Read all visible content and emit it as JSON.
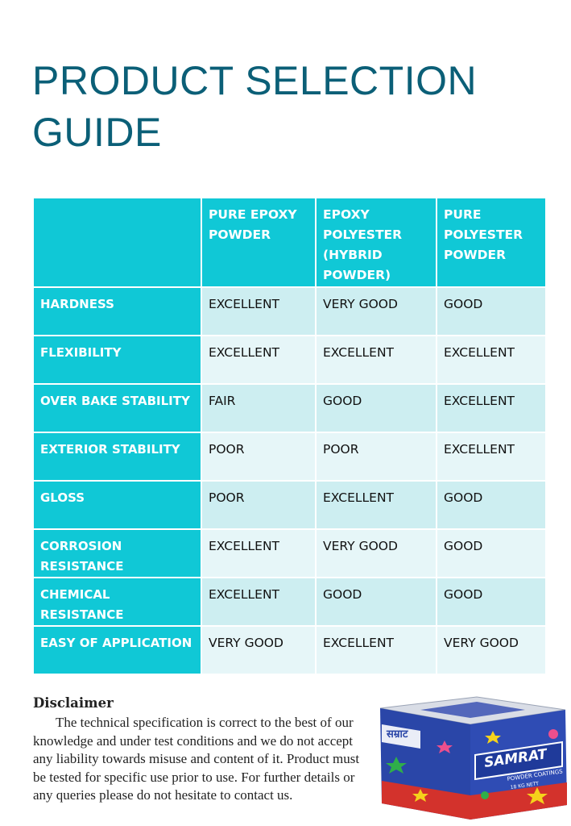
{
  "page": {
    "title_line1": "PRODUCT SELECTION",
    "title_line2": "GUIDE"
  },
  "table": {
    "columns": [
      "",
      "PURE EPOXY POWDER",
      "EPOXY POLYESTER (HYBRID POWDER)",
      "PURE POLYESTER POWDER"
    ],
    "rows": [
      {
        "label": "HARDNESS",
        "values": [
          "EXCELLENT",
          "VERY GOOD",
          "GOOD"
        ]
      },
      {
        "label": "FLEXIBILITY",
        "values": [
          "EXCELLENT",
          "EXCELLENT",
          "EXCELLENT"
        ]
      },
      {
        "label": "OVER BAKE STABILITY",
        "values": [
          "FAIR",
          "GOOD",
          "EXCELLENT"
        ]
      },
      {
        "label": "EXTERIOR STABILITY",
        "values": [
          "POOR",
          "POOR",
          "EXCELLENT"
        ]
      },
      {
        "label": "GLOSS",
        "values": [
          "POOR",
          "EXCELLENT",
          "GOOD"
        ]
      },
      {
        "label": "CORROSION RESISTANCE",
        "values": [
          "EXCELLENT",
          "VERY GOOD",
          "GOOD"
        ]
      },
      {
        "label": "CHEMICAL RESISTANCE",
        "values": [
          "EXCELLENT",
          "GOOD",
          "GOOD"
        ]
      },
      {
        "label": "EASY OF APPLICATION",
        "values": [
          "VERY GOOD",
          "EXCELLENT",
          "VERY GOOD"
        ]
      }
    ]
  },
  "disclaimer": {
    "heading": "Disclaimer",
    "text": "The technical specification is correct to the best of our knowledge and under test conditions and we do not accept any liability towards misuse and content of it. Product must be tested for specific use prior to use. For further details or any queries please do not hesitate to contact us."
  },
  "product_image": {
    "brand": "SAMRAT",
    "hindi_brand": "सम्राट",
    "subtitle": "POWDER COATINGS",
    "weight": "18 KG NETT",
    "colors": {
      "box_blue": "#2a46a8",
      "brand_red": "#d3322c",
      "accent_yellow": "#f5d21b",
      "accent_green": "#2fae4a",
      "accent_pink": "#ec4f8d"
    }
  }
}
